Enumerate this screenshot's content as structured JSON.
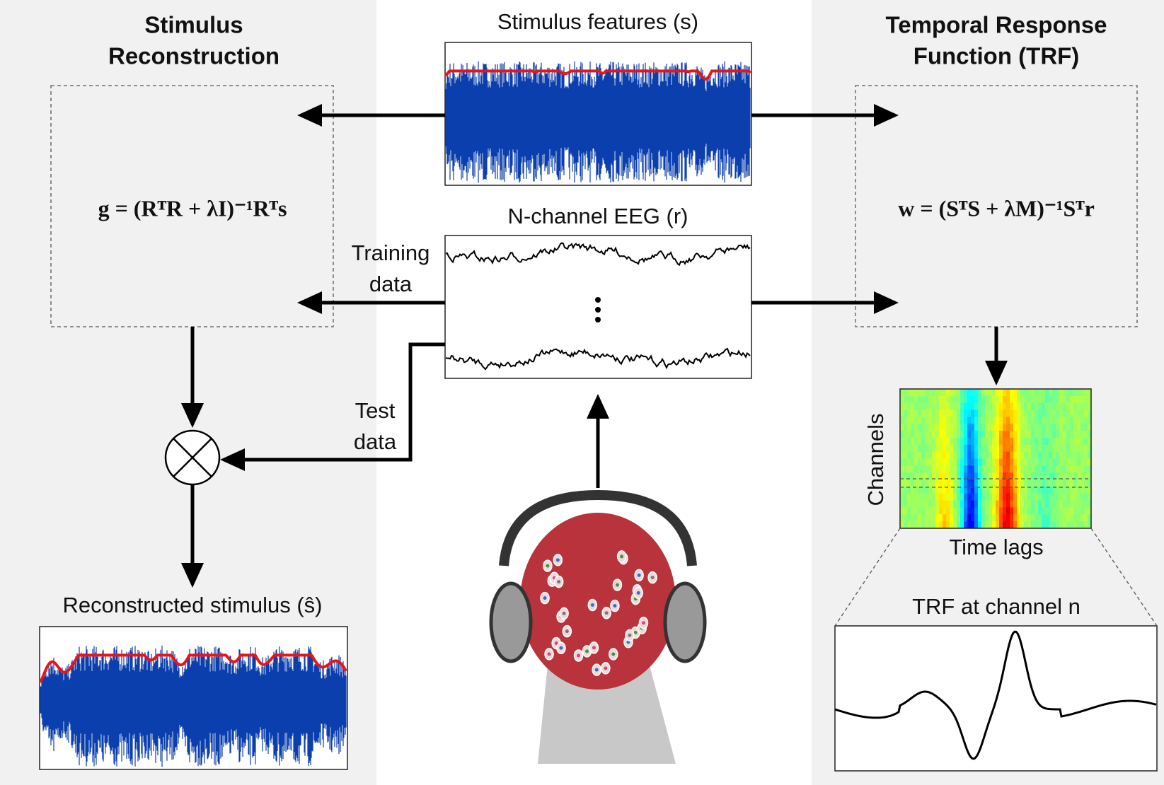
{
  "left_panel": {
    "title": [
      "Stimulus",
      "Reconstruction"
    ],
    "equation": "g = (RᵀR + λI)⁻¹Rᵀs",
    "reconstructed_label": "Reconstructed stimulus (ŝ)"
  },
  "center": {
    "stimulus_label": "Stimulus features (s)",
    "eeg_label": "N-channel EEG (r)",
    "training_label": [
      "Training",
      "data"
    ],
    "test_label": [
      "Test",
      "data"
    ]
  },
  "right_panel": {
    "title": [
      "Temporal Response",
      "Function (TRF)"
    ],
    "equation": "w = (SᵀS + λM)⁻¹Sᵀr",
    "heatmap_y_label": "Channels",
    "heatmap_x_label": "Time lags",
    "trf_label": "TRF at channel n"
  }
}
